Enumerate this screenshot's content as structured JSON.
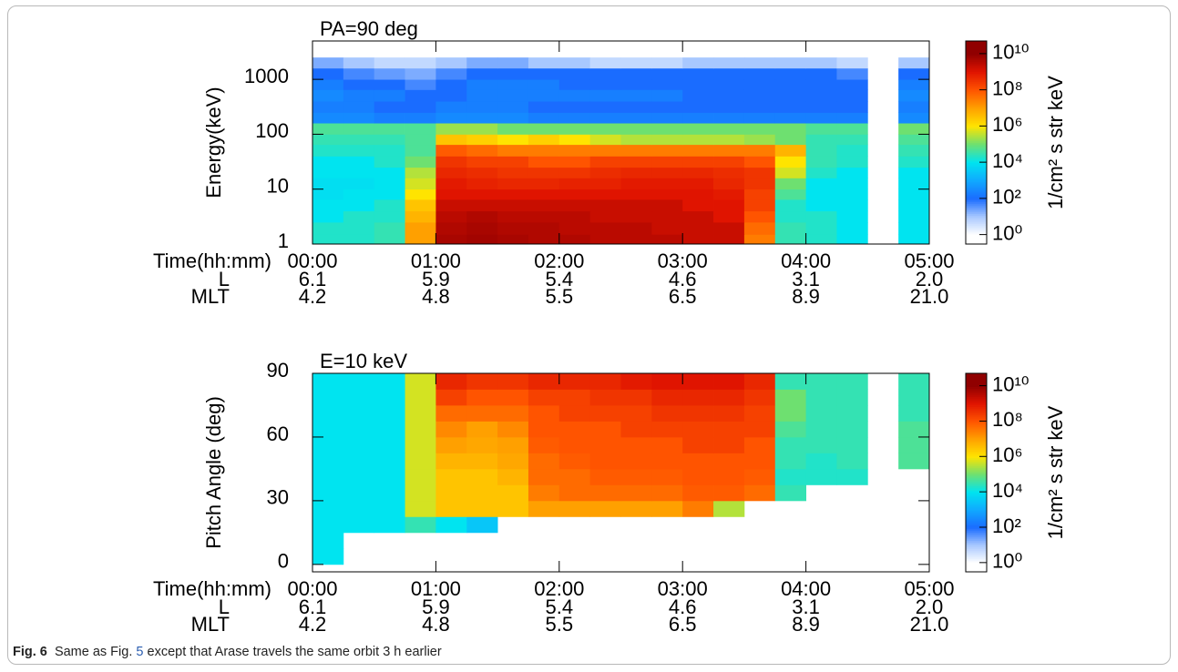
{
  "chart_data": [
    {
      "type": "heatmap",
      "title": "PA=90 deg",
      "y_label": "Energy(keV)",
      "ylog": true,
      "x_label": "Time(hh:mm)",
      "x_rows": [
        {
          "name": "L",
          "labels": [
            "6.1",
            "5.9",
            "5.4",
            "4.6",
            "3.1",
            "2.0"
          ]
        },
        {
          "name": "MLT",
          "labels": [
            "4.2",
            "4.8",
            "5.5",
            "6.5",
            "8.9",
            "21.0"
          ]
        }
      ],
      "xlim": [
        0,
        5
      ],
      "xticks": [
        {
          "value": 0,
          "label": "00:00"
        },
        {
          "value": 1,
          "label": "01:00"
        },
        {
          "value": 2,
          "label": "02:00"
        },
        {
          "value": 3,
          "label": "03:00"
        },
        {
          "value": 4,
          "label": "04:00"
        },
        {
          "value": 5,
          "label": "05:00"
        }
      ],
      "ylim": [
        1,
        5000
      ],
      "yticks": [
        1,
        10,
        100,
        1000
      ],
      "x_bins": [
        0,
        0.25,
        0.5,
        0.75,
        1,
        1.25,
        1.5,
        1.75,
        2,
        2.25,
        2.5,
        2.75,
        3,
        3.25,
        3.5,
        3.75,
        4,
        4.25,
        4.5,
        4.75,
        5
      ],
      "y_bins": [
        1,
        1.5,
        2.5,
        4,
        6.5,
        10,
        16,
        25,
        40,
        65,
        100,
        160,
        250,
        400,
        650,
        1000,
        1600,
        2500
      ],
      "values": [
        [
          20000.0,
          20000.0,
          30000.0,
          10000000.0,
          5000000000.0,
          6000000000.0,
          5000000000.0,
          4000000000.0,
          4000000000.0,
          3000000000.0,
          3000000000.0,
          3000000000.0,
          2000000000.0,
          2000000000.0,
          30000000.0,
          30000.0,
          20000.0,
          10000.0,
          null,
          10000.0
        ],
        [
          20000.0,
          20000.0,
          30000.0,
          10000000.0,
          4000000000.0,
          5000000000.0,
          4000000000.0,
          4000000000.0,
          3000000000.0,
          3000000000.0,
          3000000000.0,
          2000000000.0,
          2000000000.0,
          2000000000.0,
          50000000.0,
          30000.0,
          20000.0,
          10000.0,
          null,
          10000.0
        ],
        [
          10000.0,
          20000.0,
          20000.0,
          5000000.0,
          3000000000.0,
          4000000000.0,
          3000000000.0,
          3000000000.0,
          3000000000.0,
          2000000000.0,
          2000000000.0,
          2000000000.0,
          2000000000.0,
          1000000000.0,
          100000000.0,
          20000.0,
          20000.0,
          10000.0,
          null,
          10000.0
        ],
        [
          10000.0,
          10000.0,
          20000.0,
          3000000.0,
          2000000000.0,
          2000000000.0,
          2000000000.0,
          2000000000.0,
          2000000000.0,
          2000000000.0,
          2000000000.0,
          2000000000.0,
          1000000000.0,
          1000000000.0,
          200000000.0,
          20000.0,
          10000.0,
          10000.0,
          null,
          10000.0
        ],
        [
          8000.0,
          10000.0,
          10000.0,
          1000000.0,
          1000000000.0,
          1000000000.0,
          1000000000.0,
          1000000000.0,
          1000000000.0,
          1000000000.0,
          1000000000.0,
          1000000000.0,
          1000000000.0,
          800000000.0,
          200000000.0,
          50000.0,
          10000.0,
          10000.0,
          null,
          10000.0
        ],
        [
          8000.0,
          8000.0,
          10000.0,
          500000.0,
          800000000.0,
          600000000.0,
          500000000.0,
          500000000.0,
          600000000.0,
          600000000.0,
          800000000.0,
          800000000.0,
          800000000.0,
          500000000.0,
          300000000.0,
          100000.0,
          10000.0,
          10000.0,
          null,
          10000.0
        ],
        [
          10000.0,
          10000.0,
          10000.0,
          300000.0,
          500000000.0,
          400000000.0,
          300000000.0,
          300000000.0,
          300000000.0,
          400000000.0,
          500000000.0,
          500000000.0,
          500000000.0,
          400000000.0,
          300000000.0,
          500000.0,
          20000.0,
          10000.0,
          null,
          10000.0
        ],
        [
          10000.0,
          10000.0,
          20000.0,
          100000.0,
          300000000.0,
          200000000.0,
          200000000.0,
          100000000.0,
          100000000.0,
          200000000.0,
          200000000.0,
          200000000.0,
          200000000.0,
          200000000.0,
          100000000.0,
          1000000.0,
          30000.0,
          20000.0,
          null,
          20000.0
        ],
        [
          20000.0,
          20000.0,
          20000.0,
          50000.0,
          80000000.0,
          50000000.0,
          30000000.0,
          30000000.0,
          30000000.0,
          30000000.0,
          30000000.0,
          30000000.0,
          30000000.0,
          30000000.0,
          30000000.0,
          5000000.0,
          30000.0,
          20000.0,
          null,
          30000.0
        ],
        [
          30000.0,
          30000.0,
          30000.0,
          50000.0,
          3000000.0,
          2000000.0,
          1000000.0,
          2000000.0,
          1000000.0,
          500000.0,
          300000.0,
          300000.0,
          300000.0,
          300000.0,
          200000.0,
          100000.0,
          30000.0,
          30000.0,
          null,
          50000.0
        ],
        [
          50000.0,
          50000.0,
          50000.0,
          50000.0,
          200000.0,
          200000.0,
          100000.0,
          100000.0,
          100000.0,
          100000.0,
          100000.0,
          100000.0,
          100000.0,
          100000.0,
          100000.0,
          100000.0,
          50000.0,
          50000.0,
          null,
          100000.0
        ],
        [
          300,
          300,
          200,
          200,
          300,
          300,
          300,
          200,
          200,
          200,
          200,
          200,
          200,
          200,
          200,
          200,
          200,
          200,
          null,
          300
        ],
        [
          200,
          200,
          100,
          100,
          200,
          200,
          200,
          100,
          100,
          100,
          100,
          100,
          100,
          100,
          100,
          100,
          100,
          100,
          null,
          200
        ],
        [
          300,
          200,
          200,
          100,
          100,
          200,
          200,
          200,
          200,
          200,
          200,
          200,
          100,
          100,
          100,
          100,
          100,
          100,
          null,
          300
        ],
        [
          200,
          100,
          100,
          50,
          100,
          200,
          200,
          200,
          100,
          100,
          100,
          100,
          100,
          100,
          100,
          100,
          100,
          100,
          null,
          200
        ],
        [
          100,
          50,
          30,
          20,
          50,
          100,
          100,
          100,
          100,
          100,
          100,
          100,
          100,
          100,
          100,
          100,
          100,
          50,
          null,
          100
        ],
        [
          20,
          10,
          5,
          5,
          10,
          20,
          20,
          10,
          10,
          5,
          5,
          5,
          10,
          10,
          10,
          10,
          10,
          5,
          null,
          10
        ]
      ],
      "colorbar_label": "1/cm² s str keV",
      "zlim": [
        0.3,
        50000000000.0
      ],
      "zticks": [
        {
          "value": 1,
          "label": "10⁰"
        },
        {
          "value": 100,
          "label": "10²"
        },
        {
          "value": 10000,
          "label": "10⁴"
        },
        {
          "value": 1000000,
          "label": "10⁶"
        },
        {
          "value": 100000000,
          "label": "10⁸"
        },
        {
          "value": 10000000000,
          "label": "10¹⁰"
        }
      ],
      "colormap": [
        "#ffffff",
        "#a8c8ff",
        "#1a6cff",
        "#10aaff",
        "#00e4f0",
        "#6ee070",
        "#ffe400",
        "#ffa000",
        "#ff5400",
        "#e01400",
        "#900000"
      ]
    },
    {
      "type": "heatmap",
      "title": "E=10 keV",
      "y_label": "Pitch Angle (deg)",
      "ylog": false,
      "x_label": "Time(hh:mm)",
      "x_rows": [
        {
          "name": "L",
          "labels": [
            "6.1",
            "5.9",
            "5.4",
            "4.6",
            "3.1",
            "2.0"
          ]
        },
        {
          "name": "MLT",
          "labels": [
            "4.2",
            "4.8",
            "5.5",
            "6.5",
            "8.9",
            "21.0"
          ]
        }
      ],
      "xlim": [
        0,
        5
      ],
      "xticks": [
        {
          "value": 0,
          "label": "00:00"
        },
        {
          "value": 1,
          "label": "01:00"
        },
        {
          "value": 2,
          "label": "02:00"
        },
        {
          "value": 3,
          "label": "03:00"
        },
        {
          "value": 4,
          "label": "04:00"
        },
        {
          "value": 5,
          "label": "05:00"
        }
      ],
      "ylim": [
        -3.5,
        90
      ],
      "yticks": [
        0,
        30,
        60,
        90
      ],
      "x_bins": [
        0,
        0.25,
        0.5,
        0.75,
        1,
        1.25,
        1.5,
        1.75,
        2,
        2.25,
        2.5,
        2.75,
        3,
        3.25,
        3.5,
        3.75,
        4,
        4.25,
        4.5,
        4.75,
        5
      ],
      "y_bins": [
        0,
        7.5,
        15,
        22.5,
        30,
        37.5,
        45,
        52.5,
        60,
        67.5,
        75,
        82.5,
        90
      ],
      "values": [
        [
          10000.0,
          null,
          null,
          null,
          null,
          null,
          null,
          null,
          null,
          null,
          null,
          null,
          null,
          null,
          null,
          null,
          null,
          null,
          null,
          null
        ],
        [
          10000.0,
          null,
          null,
          null,
          null,
          null,
          null,
          null,
          null,
          null,
          null,
          null,
          null,
          null,
          null,
          null,
          null,
          null,
          null,
          null
        ],
        [
          10000.0,
          10000.0,
          10000.0,
          30000.0,
          10000.0,
          3000.0,
          null,
          null,
          null,
          null,
          null,
          null,
          null,
          null,
          null,
          null,
          null,
          null,
          null,
          null
        ],
        [
          10000.0,
          10000.0,
          10000.0,
          500000.0,
          3000000.0,
          3000000.0,
          3000000.0,
          10000000.0,
          10000000.0,
          10000000.0,
          10000000.0,
          10000000.0,
          30000000.0,
          300000.0,
          null,
          null,
          null,
          null,
          null,
          null
        ],
        [
          10000.0,
          10000.0,
          10000.0,
          500000.0,
          3000000.0,
          3000000.0,
          3000000.0,
          30000000.0,
          50000000.0,
          50000000.0,
          50000000.0,
          50000000.0,
          80000000.0,
          80000000.0,
          50000000.0,
          30000.0,
          null,
          null,
          null,
          null
        ],
        [
          10000.0,
          10000.0,
          10000.0,
          500000.0,
          3000000.0,
          3000000.0,
          5000000.0,
          50000000.0,
          50000000.0,
          80000000.0,
          80000000.0,
          80000000.0,
          100000000.0,
          100000000.0,
          80000000.0,
          20000.0,
          20000.0,
          20000.0,
          null,
          null
        ],
        [
          10000.0,
          10000.0,
          10000.0,
          500000.0,
          5000000.0,
          5000000.0,
          8000000.0,
          50000000.0,
          80000000.0,
          100000000.0,
          100000000.0,
          100000000.0,
          100000000.0,
          100000000.0,
          100000000.0,
          30000.0,
          20000.0,
          30000.0,
          null,
          50000.0
        ],
        [
          10000.0,
          10000.0,
          10000.0,
          500000.0,
          10000000.0,
          8000000.0,
          10000000.0,
          80000000.0,
          100000000.0,
          100000000.0,
          100000000.0,
          100000000.0,
          200000000.0,
          200000000.0,
          100000000.0,
          30000.0,
          30000.0,
          30000.0,
          null,
          50000.0
        ],
        [
          10000.0,
          10000.0,
          10000.0,
          500000.0,
          20000000.0,
          10000000.0,
          20000000.0,
          100000000.0,
          100000000.0,
          100000000.0,
          200000000.0,
          200000000.0,
          200000000.0,
          200000000.0,
          200000000.0,
          50000.0,
          30000.0,
          30000.0,
          null,
          50000.0
        ],
        [
          10000.0,
          10000.0,
          10000.0,
          500000.0,
          50000000.0,
          50000000.0,
          50000000.0,
          100000000.0,
          200000000.0,
          200000000.0,
          200000000.0,
          300000000.0,
          300000000.0,
          300000000.0,
          200000000.0,
          100000.0,
          30000.0,
          30000.0,
          null,
          30000.0
        ],
        [
          10000.0,
          10000.0,
          10000.0,
          500000.0,
          200000000.0,
          100000000.0,
          100000000.0,
          200000000.0,
          200000000.0,
          300000000.0,
          300000000.0,
          500000000.0,
          500000000.0,
          500000000.0,
          300000000.0,
          100000.0,
          30000.0,
          30000.0,
          null,
          30000.0
        ],
        [
          10000.0,
          10000.0,
          10000.0,
          500000.0,
          500000000.0,
          300000000.0,
          300000000.0,
          500000000.0,
          500000000.0,
          500000000.0,
          800000000.0,
          1000000000.0,
          1000000000.0,
          1000000000.0,
          500000000.0,
          30000.0,
          30000.0,
          30000.0,
          null,
          30000.0
        ]
      ],
      "colorbar_label": "1/cm² s str keV",
      "zlim": [
        0.3,
        50000000000.0
      ],
      "zticks": [
        {
          "value": 1,
          "label": "10⁰"
        },
        {
          "value": 100,
          "label": "10²"
        },
        {
          "value": 10000,
          "label": "10⁴"
        },
        {
          "value": 1000000,
          "label": "10⁶"
        },
        {
          "value": 100000000,
          "label": "10⁸"
        },
        {
          "value": 10000000000,
          "label": "10¹⁰"
        }
      ],
      "colormap": [
        "#ffffff",
        "#a8c8ff",
        "#1a6cff",
        "#10aaff",
        "#00e4f0",
        "#6ee070",
        "#ffe400",
        "#ffa000",
        "#ff5400",
        "#e01400",
        "#900000"
      ]
    }
  ],
  "caption": {
    "label": "Fig. 6",
    "text_before": "Same as Fig.",
    "link": "5",
    "text_after": "except that Arase travels the same orbit 3 h earlier"
  }
}
